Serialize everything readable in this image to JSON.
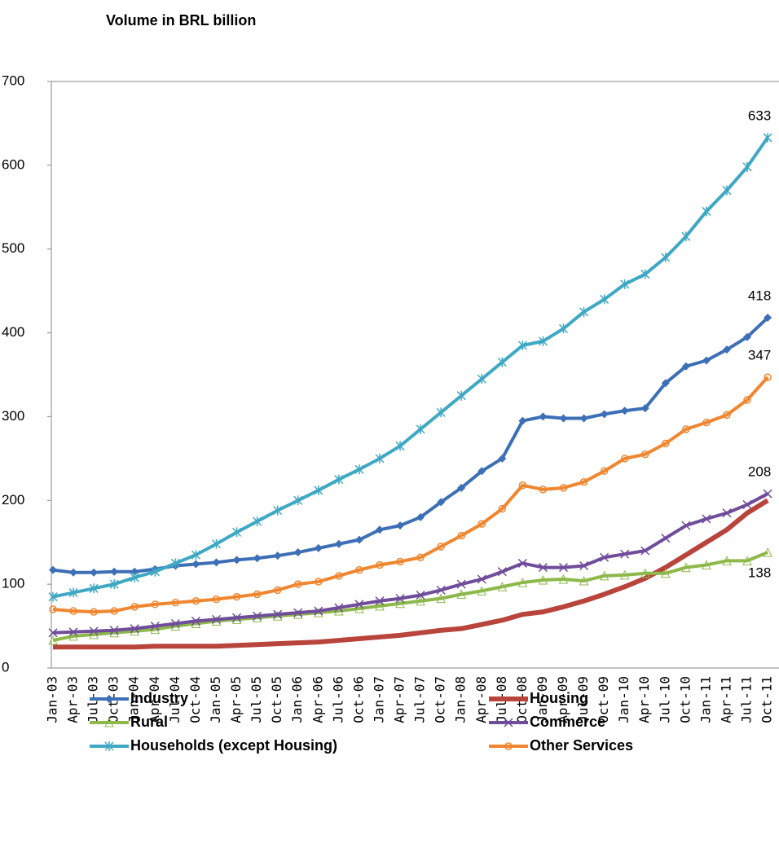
{
  "chart_data": {
    "type": "line",
    "title": "Volume in BRL billion",
    "categories": [
      "Jan-03",
      "Apr-03",
      "Jul-03",
      "Oct-03",
      "Jan-04",
      "Apr-04",
      "Jul-04",
      "Oct-04",
      "Jan-05",
      "Apr-05",
      "Jul-05",
      "Oct-05",
      "Jan-06",
      "Apr-06",
      "Jul-06",
      "Oct-06",
      "Jan-07",
      "Apr-07",
      "Jul-07",
      "Oct-07",
      "Jan-08",
      "Apr-08",
      "Jul-08",
      "Oct-08",
      "Jan-09",
      "Apr-09",
      "Jul-09",
      "Oct-09",
      "Jan-10",
      "Apr-10",
      "Jul-10",
      "Oct-10",
      "Jan-11",
      "Apr-11",
      "Jul-11",
      "Oct-11"
    ],
    "ylim": [
      0,
      700
    ],
    "yticks": [
      0,
      100,
      200,
      300,
      400,
      500,
      600,
      700
    ],
    "series": [
      {
        "name": "Industry",
        "color": "#3d6fb6",
        "marker": "diamond",
        "data_label": "above",
        "values": [
          117,
          114,
          114,
          115,
          115,
          118,
          122,
          124,
          126,
          129,
          131,
          134,
          138,
          143,
          148,
          153,
          165,
          170,
          180,
          198,
          215,
          235,
          250,
          295,
          300,
          298,
          298,
          303,
          307,
          310,
          340,
          360,
          367,
          380,
          395,
          418
        ]
      },
      {
        "name": "Housing",
        "color": "#b8443c",
        "marker": "none",
        "values": [
          25,
          25,
          25,
          25,
          25,
          26,
          26,
          26,
          26,
          27,
          28,
          29,
          30,
          31,
          33,
          35,
          37,
          39,
          42,
          45,
          47,
          52,
          57,
          64,
          67,
          73,
          80,
          88,
          97,
          107,
          120,
          135,
          150,
          165,
          185,
          200
        ]
      },
      {
        "name": "Rural",
        "color": "#8db84a",
        "marker": "triangle",
        "data_label": "below",
        "values": [
          33,
          38,
          40,
          42,
          44,
          46,
          50,
          53,
          56,
          58,
          60,
          62,
          64,
          66,
          68,
          71,
          74,
          77,
          80,
          83,
          88,
          92,
          97,
          102,
          105,
          106,
          104,
          110,
          111,
          113,
          113,
          120,
          123,
          128,
          128,
          138
        ]
      },
      {
        "name": "Commerce",
        "color": "#6f4d9b",
        "marker": "x",
        "data_label": "above",
        "values": [
          42,
          43,
          44,
          45,
          47,
          50,
          53,
          56,
          58,
          60,
          62,
          64,
          66,
          68,
          72,
          76,
          80,
          83,
          87,
          93,
          100,
          106,
          115,
          125,
          120,
          120,
          122,
          132,
          136,
          140,
          155,
          170,
          178,
          185,
          195,
          208
        ]
      },
      {
        "name": "Households (except Housing)",
        "color": "#3fa8c4",
        "marker": "star",
        "data_label": "above",
        "values": [
          85,
          90,
          95,
          100,
          108,
          115,
          125,
          135,
          148,
          162,
          175,
          188,
          200,
          212,
          225,
          237,
          250,
          265,
          285,
          305,
          325,
          345,
          365,
          385,
          390,
          405,
          425,
          440,
          458,
          470,
          490,
          515,
          545,
          570,
          598,
          633
        ]
      },
      {
        "name": "Other Services",
        "color": "#f0862f",
        "marker": "circle",
        "data_label": "above",
        "values": [
          70,
          68,
          67,
          68,
          73,
          76,
          78,
          80,
          82,
          85,
          88,
          93,
          100,
          103,
          110,
          117,
          123,
          127,
          132,
          145,
          158,
          172,
          190,
          218,
          213,
          215,
          222,
          235,
          250,
          255,
          268,
          285,
          293,
          302,
          320,
          347
        ]
      }
    ]
  }
}
